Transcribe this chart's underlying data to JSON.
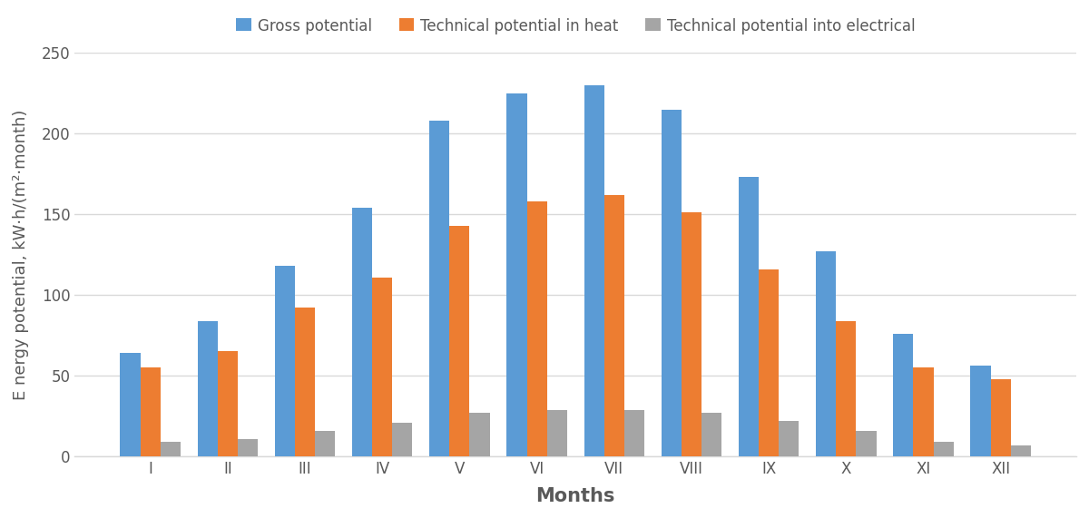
{
  "months": [
    "I",
    "II",
    "III",
    "IV",
    "V",
    "VI",
    "VII",
    "VIII",
    "IX",
    "X",
    "XI",
    "XII"
  ],
  "gross_potential": [
    64,
    84,
    118,
    154,
    208,
    225,
    230,
    215,
    173,
    127,
    76,
    56
  ],
  "tech_heat": [
    55,
    65,
    92,
    111,
    143,
    158,
    162,
    151,
    116,
    84,
    55,
    48
  ],
  "tech_electrical": [
    9,
    11,
    16,
    21,
    27,
    29,
    29,
    27,
    22,
    16,
    9,
    7
  ],
  "bar_color_gross": "#5B9BD5",
  "bar_color_heat": "#ED7D31",
  "bar_color_electrical": "#A5A5A5",
  "legend_labels": [
    "Gross potential",
    "Technical potential in heat",
    "Technical potential into electrical"
  ],
  "ylabel": "E nergy potential, kW·h/(m²·month)",
  "xlabel": "Months",
  "ylim": [
    0,
    250
  ],
  "yticks": [
    0,
    50,
    100,
    150,
    200,
    250
  ],
  "axis_fontsize": 13,
  "tick_fontsize": 12,
  "legend_fontsize": 12,
  "background_color": "#FFFFFF",
  "plot_bg_color": "#FFFFFF",
  "grid_color": "#D9D9D9",
  "text_color": "#595959",
  "bar_width": 0.26,
  "fig_width": 12.0,
  "fig_height": 5.71
}
